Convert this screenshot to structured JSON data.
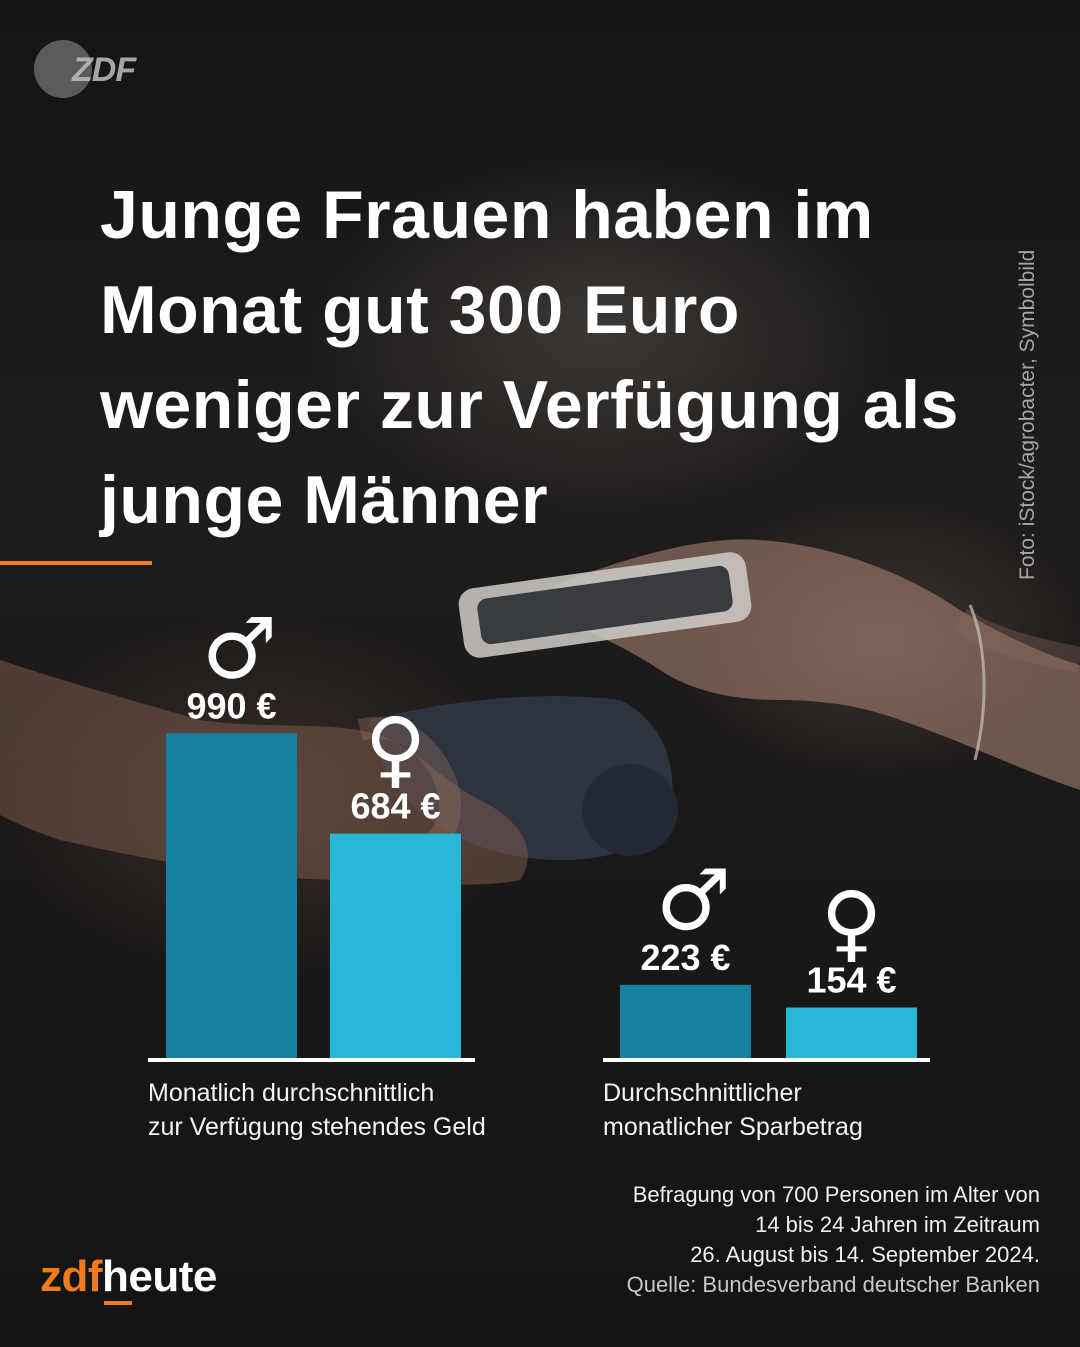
{
  "brand": {
    "corner_logo": "ZDF",
    "wordmark_accent": "zdf",
    "wordmark_main": "heute"
  },
  "headline": "Junge Frauen haben im Monat gut 300 Euro weniger zur Verfügung als junge Männer",
  "photo_credit": "Foto: iStock/agrobacter, Symbolbild",
  "colors": {
    "accent": "#f07b1d",
    "male_bar": "#1581a0",
    "female_bar": "#27b8d8"
  },
  "icons": {
    "male": "male-symbol-icon",
    "female": "female-symbol-icon"
  },
  "chart_data": [
    {
      "type": "bar",
      "caption": [
        "Monatlich durchschnittlich",
        "zur Verfügung stehendes Geld"
      ],
      "categories": [
        "Männer",
        "Frauen"
      ],
      "values": [
        990,
        684
      ],
      "labels": [
        "990 €",
        "684 €"
      ],
      "symbols": [
        "♂",
        "♀"
      ],
      "unit": "€"
    },
    {
      "type": "bar",
      "caption": [
        "Durchschnittlicher",
        "monatlicher Sparbetrag"
      ],
      "categories": [
        "Männer",
        "Frauen"
      ],
      "values": [
        223,
        154
      ],
      "labels": [
        "223 €",
        "154 €"
      ],
      "symbols": [
        "♂",
        "♀"
      ],
      "unit": "€"
    }
  ],
  "footnote": [
    "Befragung von 700 Personen im Alter von",
    "14 bis 24 Jahren im Zeitraum",
    "26. August bis 14. September 2024."
  ],
  "source": "Quelle: Bundesverband deutscher Banken"
}
